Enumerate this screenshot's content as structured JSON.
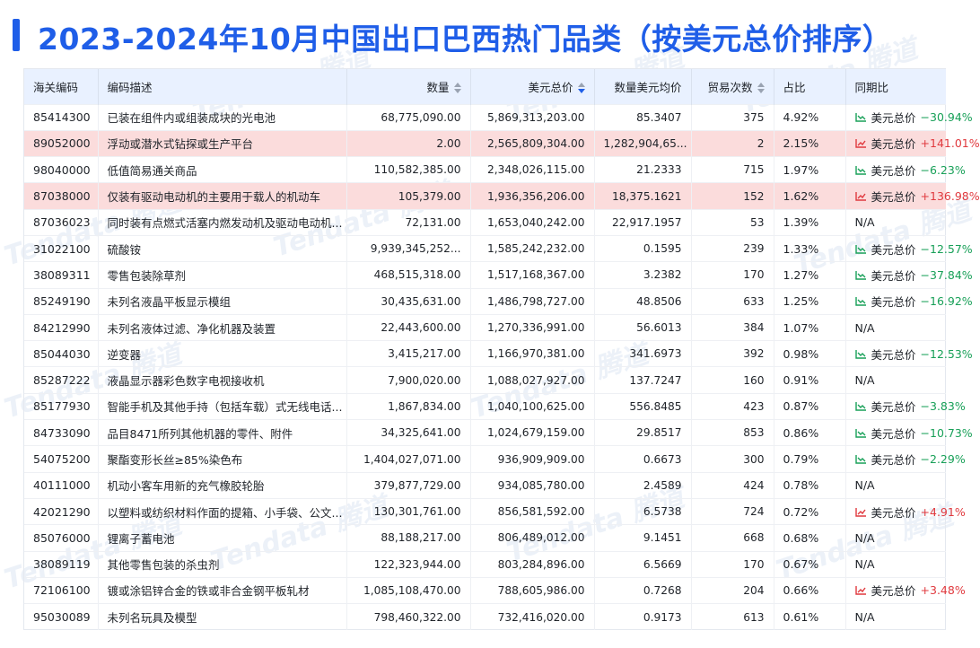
{
  "title": "2023-2024年10月中国出口巴西热门品类（按美元总价排序）",
  "watermark": "Tendata 腾道",
  "colors": {
    "accent": "#1f5ee8",
    "down": "#18a058",
    "up": "#e0393e",
    "highlight": "#fbdcdc",
    "header_bg": "#e9f1ff"
  },
  "table": {
    "headers": {
      "code": "海关编码",
      "desc": "编码描述",
      "qty": "数量",
      "usd_total": "美元总价",
      "avg_price": "数量美元均价",
      "trades": "贸易次数",
      "share": "占比",
      "yoy": "同期比"
    },
    "sort_icons": {
      "qty": "sort-icon",
      "usd_total": "sort-desc-icon",
      "trades": "sort-icon"
    },
    "rows": [
      {
        "code": "85414300",
        "desc": "已装在组件内或组装成块的光电池",
        "qty": "68,775,090.00",
        "usd_total": "5,869,313,203.00",
        "avg_price": "85.3407",
        "trades": "375",
        "share": "4.92%",
        "yoy_label": "美元总价",
        "yoy_value": "−30.94%",
        "dir": "down",
        "hl": false
      },
      {
        "code": "89052000",
        "desc": "浮动或潜水式钻探或生产平台",
        "qty": "2.00",
        "usd_total": "2,565,809,304.00",
        "avg_price": "1,282,904,65...",
        "trades": "2",
        "share": "2.15%",
        "yoy_label": "美元总价",
        "yoy_value": "+141.01%",
        "dir": "up",
        "hl": true
      },
      {
        "code": "98040000",
        "desc": "低值简易通关商品",
        "qty": "110,582,385.00",
        "usd_total": "2,348,026,115.00",
        "avg_price": "21.2333",
        "trades": "715",
        "share": "1.97%",
        "yoy_label": "美元总价",
        "yoy_value": "−6.23%",
        "dir": "down",
        "hl": false
      },
      {
        "code": "87038000",
        "desc": "仅装有驱动电动机的主要用于载人的机动车",
        "qty": "105,379.00",
        "usd_total": "1,936,356,206.00",
        "avg_price": "18,375.1621",
        "trades": "152",
        "share": "1.62%",
        "yoy_label": "美元总价",
        "yoy_value": "+136.98%",
        "dir": "up",
        "hl": true
      },
      {
        "code": "87036023",
        "desc": "同时装有点燃式活塞内燃发动机及驱动电动机...",
        "qty": "72,131.00",
        "usd_total": "1,653,040,242.00",
        "avg_price": "22,917.1957",
        "trades": "53",
        "share": "1.39%",
        "yoy_label": "",
        "yoy_value": "N/A",
        "dir": "na",
        "hl": false
      },
      {
        "code": "31022100",
        "desc": "硫酸铵",
        "qty": "9,939,345,252...",
        "usd_total": "1,585,242,232.00",
        "avg_price": "0.1595",
        "trades": "239",
        "share": "1.33%",
        "yoy_label": "美元总价",
        "yoy_value": "−12.57%",
        "dir": "down",
        "hl": false
      },
      {
        "code": "38089311",
        "desc": "零售包装除草剂",
        "qty": "468,515,318.00",
        "usd_total": "1,517,168,367.00",
        "avg_price": "3.2382",
        "trades": "170",
        "share": "1.27%",
        "yoy_label": "美元总价",
        "yoy_value": "−37.84%",
        "dir": "down",
        "hl": false
      },
      {
        "code": "85249190",
        "desc": "未列名液晶平板显示模组",
        "qty": "30,435,631.00",
        "usd_total": "1,486,798,727.00",
        "avg_price": "48.8506",
        "trades": "633",
        "share": "1.25%",
        "yoy_label": "美元总价",
        "yoy_value": "−16.92%",
        "dir": "down",
        "hl": false
      },
      {
        "code": "84212990",
        "desc": "未列名液体过滤、净化机器及装置",
        "qty": "22,443,600.00",
        "usd_total": "1,270,336,991.00",
        "avg_price": "56.6013",
        "trades": "384",
        "share": "1.07%",
        "yoy_label": "",
        "yoy_value": "N/A",
        "dir": "na",
        "hl": false
      },
      {
        "code": "85044030",
        "desc": "逆变器",
        "qty": "3,415,217.00",
        "usd_total": "1,166,970,381.00",
        "avg_price": "341.6973",
        "trades": "392",
        "share": "0.98%",
        "yoy_label": "美元总价",
        "yoy_value": "−12.53%",
        "dir": "down",
        "hl": false
      },
      {
        "code": "85287222",
        "desc": "液晶显示器彩色数字电视接收机",
        "qty": "7,900,020.00",
        "usd_total": "1,088,027,927.00",
        "avg_price": "137.7247",
        "trades": "160",
        "share": "0.91%",
        "yoy_label": "",
        "yoy_value": "N/A",
        "dir": "na",
        "hl": false
      },
      {
        "code": "85177930",
        "desc": "智能手机及其他手持（包括车载）式无线电话...",
        "qty": "1,867,834.00",
        "usd_total": "1,040,100,625.00",
        "avg_price": "556.8485",
        "trades": "423",
        "share": "0.87%",
        "yoy_label": "美元总价",
        "yoy_value": "−3.83%",
        "dir": "down",
        "hl": false
      },
      {
        "code": "84733090",
        "desc": "品目8471所列其他机器的零件、附件",
        "qty": "34,325,641.00",
        "usd_total": "1,024,679,159.00",
        "avg_price": "29.8517",
        "trades": "853",
        "share": "0.86%",
        "yoy_label": "美元总价",
        "yoy_value": "−10.73%",
        "dir": "down",
        "hl": false
      },
      {
        "code": "54075200",
        "desc": "聚酯变形长丝≥85%染色布",
        "qty": "1,404,027,071.00",
        "usd_total": "936,909,909.00",
        "avg_price": "0.6673",
        "trades": "300",
        "share": "0.79%",
        "yoy_label": "美元总价",
        "yoy_value": "−2.29%",
        "dir": "down",
        "hl": false
      },
      {
        "code": "40111000",
        "desc": "机动小客车用新的充气橡胶轮胎",
        "qty": "379,877,729.00",
        "usd_total": "934,085,780.00",
        "avg_price": "2.4589",
        "trades": "424",
        "share": "0.78%",
        "yoy_label": "",
        "yoy_value": "N/A",
        "dir": "na",
        "hl": false
      },
      {
        "code": "42021290",
        "desc": "以塑料或纺织材料作面的提箱、小手袋、公文...",
        "qty": "130,301,761.00",
        "usd_total": "856,581,592.00",
        "avg_price": "6.5738",
        "trades": "724",
        "share": "0.72%",
        "yoy_label": "美元总价",
        "yoy_value": "+4.91%",
        "dir": "up",
        "hl": false
      },
      {
        "code": "85076000",
        "desc": "锂离子蓄电池",
        "qty": "88,188,217.00",
        "usd_total": "806,489,012.00",
        "avg_price": "9.1451",
        "trades": "668",
        "share": "0.68%",
        "yoy_label": "",
        "yoy_value": "N/A",
        "dir": "na",
        "hl": false
      },
      {
        "code": "38089119",
        "desc": "其他零售包装的杀虫剂",
        "qty": "122,323,944.00",
        "usd_total": "803,284,896.00",
        "avg_price": "6.5669",
        "trades": "170",
        "share": "0.67%",
        "yoy_label": "",
        "yoy_value": "N/A",
        "dir": "na",
        "hl": false
      },
      {
        "code": "72106100",
        "desc": "镀或涂铝锌合金的铁或非合金钢平板轧材",
        "qty": "1,085,108,470.00",
        "usd_total": "788,605,986.00",
        "avg_price": "0.7268",
        "trades": "204",
        "share": "0.66%",
        "yoy_label": "美元总价",
        "yoy_value": "+3.48%",
        "dir": "up",
        "hl": false
      },
      {
        "code": "95030089",
        "desc": "未列名玩具及模型",
        "qty": "798,460,322.00",
        "usd_total": "732,416,020.00",
        "avg_price": "0.9173",
        "trades": "613",
        "share": "0.61%",
        "yoy_label": "",
        "yoy_value": "N/A",
        "dir": "na",
        "hl": false
      }
    ]
  }
}
